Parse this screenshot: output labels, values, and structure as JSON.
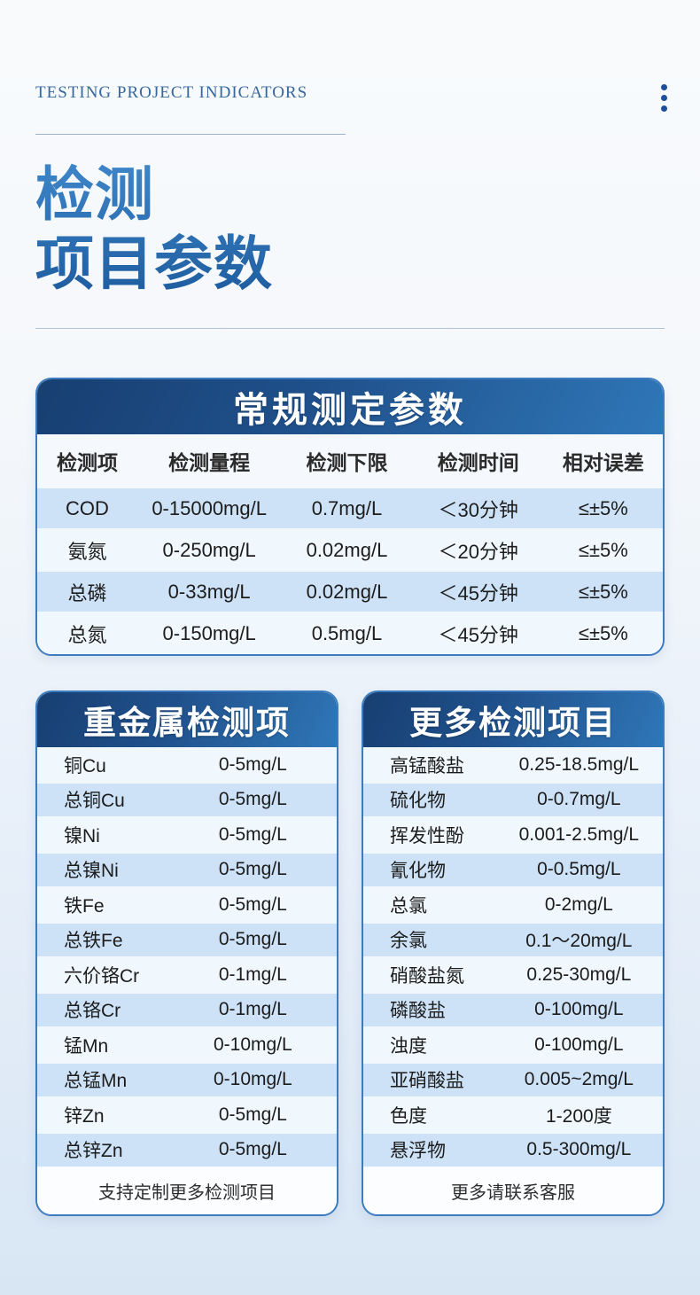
{
  "header": {
    "eyebrow": "TESTING PROJECT INDICATORS",
    "title_line1": "检测",
    "title_line2": "项目参数"
  },
  "icons": {
    "menu": "vertical-dots-icon"
  },
  "colors": {
    "brand_dark": "#16406f",
    "brand": "#2f74b4",
    "row_highlight": "#cde2f7",
    "card_border": "#3b7bbe",
    "page_bottom": "#d8e6f4",
    "title_blue": "#2a6db1"
  },
  "main_table": {
    "title": "常规测定参数",
    "columns": [
      "检测项",
      "检测量程",
      "检测下限",
      "检测时间",
      "相对误差"
    ],
    "rows": [
      [
        "COD",
        "0-15000mg/L",
        "0.7mg/L",
        "＜30分钟",
        "≤±5%"
      ],
      [
        "氨氮",
        "0-250mg/L",
        "0.02mg/L",
        "＜20分钟",
        "≤±5%"
      ],
      [
        "总磷",
        "0-33mg/L",
        "0.02mg/L",
        "＜45分钟",
        "≤±5%"
      ],
      [
        "总氮",
        "0-150mg/L",
        "0.5mg/L",
        "＜45分钟",
        "≤±5%"
      ]
    ]
  },
  "left_table": {
    "title": "重金属检测项",
    "rows": [
      [
        "铜Cu",
        "0-5mg/L"
      ],
      [
        "总铜Cu",
        "0-5mg/L"
      ],
      [
        "镍Ni",
        "0-5mg/L"
      ],
      [
        "总镍Ni",
        "0-5mg/L"
      ],
      [
        "铁Fe",
        "0-5mg/L"
      ],
      [
        "总铁Fe",
        "0-5mg/L"
      ],
      [
        "六价铬Cr",
        "0-1mg/L"
      ],
      [
        "总铬Cr",
        "0-1mg/L"
      ],
      [
        "锰Mn",
        "0-10mg/L"
      ],
      [
        "总锰Mn",
        "0-10mg/L"
      ],
      [
        "锌Zn",
        "0-5mg/L"
      ],
      [
        "总锌Zn",
        "0-5mg/L"
      ]
    ],
    "footer": "支持定制更多检测项目"
  },
  "right_table": {
    "title": "更多检测项目",
    "rows": [
      [
        "高锰酸盐",
        "0.25-18.5mg/L"
      ],
      [
        "硫化物",
        "0-0.7mg/L"
      ],
      [
        "挥发性酚",
        "0.001-2.5mg/L"
      ],
      [
        "氰化物",
        "0-0.5mg/L"
      ],
      [
        "总氯",
        "0-2mg/L"
      ],
      [
        "余氯",
        "0.1～20mg/L"
      ],
      [
        "硝酸盐氮",
        "0.25-30mg/L"
      ],
      [
        "磷酸盐",
        "0-100mg/L"
      ],
      [
        "浊度",
        "0-100mg/L"
      ],
      [
        "亚硝酸盐",
        "0.005~2mg/L"
      ],
      [
        "色度",
        "1-200度"
      ],
      [
        "悬浮物",
        "0.5-300mg/L"
      ]
    ],
    "footer": "更多请联系客服"
  }
}
